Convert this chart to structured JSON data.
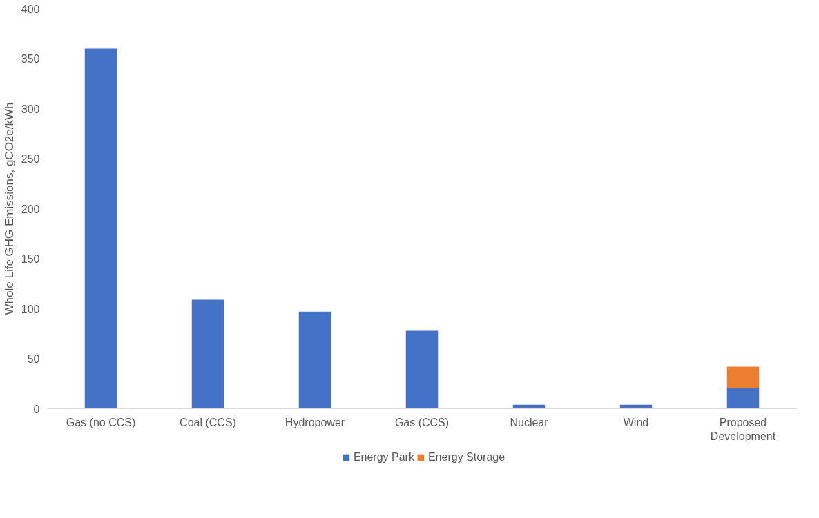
{
  "chart_data": {
    "type": "bar",
    "stacked": true,
    "ylabel": "Whole Life GHG Emissions, gCO2e/kWh",
    "categories": [
      "Gas (no CCS)",
      "Coal (CCS)",
      "Hydropower",
      "Gas (CCS)",
      "Nuclear",
      "Wind",
      "Proposed Development"
    ],
    "series": [
      {
        "name": "Energy Park",
        "color": "#4472c4",
        "values": [
          360,
          109,
          97,
          78,
          4,
          4,
          21
        ]
      },
      {
        "name": "Energy Storage",
        "color": "#ed7d31",
        "values": [
          null,
          null,
          null,
          null,
          null,
          null,
          21
        ]
      }
    ],
    "ylim": [
      0,
      400
    ],
    "yticks": [
      0,
      50,
      100,
      150,
      200,
      250,
      300,
      350,
      400
    ],
    "grid": false,
    "legend": "bottom"
  }
}
